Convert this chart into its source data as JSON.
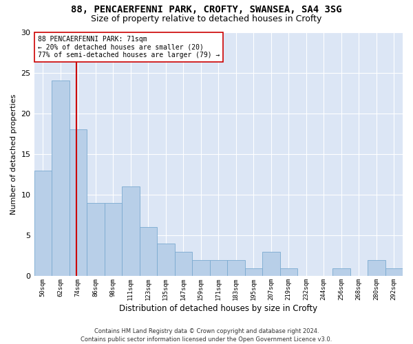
{
  "title": "88, PENCAERFENNI PARK, CROFTY, SWANSEA, SA4 3SG",
  "subtitle": "Size of property relative to detached houses in Crofty",
  "xlabel": "Distribution of detached houses by size in Crofty",
  "ylabel": "Number of detached properties",
  "categories": [
    "50sqm",
    "62sqm",
    "74sqm",
    "86sqm",
    "98sqm",
    "111sqm",
    "123sqm",
    "135sqm",
    "147sqm",
    "159sqm",
    "171sqm",
    "183sqm",
    "195sqm",
    "207sqm",
    "219sqm",
    "232sqm",
    "244sqm",
    "256sqm",
    "268sqm",
    "280sqm",
    "292sqm"
  ],
  "values": [
    13,
    24,
    18,
    9,
    9,
    11,
    6,
    4,
    3,
    2,
    2,
    2,
    1,
    3,
    1,
    0,
    0,
    1,
    0,
    2,
    1
  ],
  "bar_color": "#b8cfe8",
  "bar_edge_color": "#7aaad0",
  "marker_label": "88 PENCAERFENNI PARK: 71sqm",
  "smaller_pct": "20% of detached houses are smaller (20)",
  "larger_pct": "77% of semi-detached houses are larger (79)",
  "vline_color": "#cc0000",
  "annotation_box_color": "#cc0000",
  "ylim": [
    0,
    30
  ],
  "yticks": [
    0,
    5,
    10,
    15,
    20,
    25,
    30
  ],
  "footer": "Contains HM Land Registry data © Crown copyright and database right 2024.\nContains public sector information licensed under the Open Government Licence v3.0.",
  "bg_color": "#dce6f5",
  "title_fontsize": 10,
  "subtitle_fontsize": 9
}
